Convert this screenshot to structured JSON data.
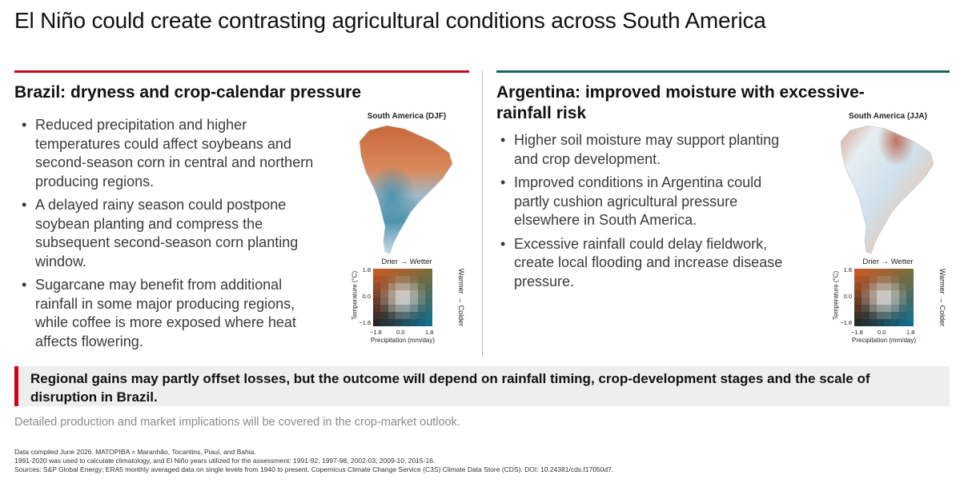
{
  "title": "El Niño could create contrasting agricultural conditions across South America",
  "left": {
    "heading": "Brazil: dryness and crop-calendar pressure",
    "bullets": [
      "Reduced precipitation and higher temperatures could affect soybeans and second-season corn in central and northern producing regions.",
      "A delayed rainy season could postpone soybean planting and compress the subsequent second-season corn planting window.",
      "Sugarcane may benefit from additional rainfall in some major producing regions, while coffee is more exposed where heat affects flowering."
    ],
    "map": {
      "title": "South America (DJF)",
      "legend_top": "Drier → Wetter",
      "legend_right": "Warmer → Colder",
      "y_label": "Temperature (°C)",
      "x_label": "Precipitation (mm/day)",
      "y_ticks": [
        "1.8",
        "0.0",
        "−1.8"
      ],
      "x_ticks": [
        "−1.8",
        "0.0",
        "1.8"
      ]
    }
  },
  "right": {
    "heading": "Argentina: improved moisture with excessive-rainfall risk",
    "bullets": [
      "Higher soil moisture may support planting and crop development.",
      "Improved conditions in Argentina could partly cushion agricultural pressure elsewhere in South America.",
      "Excessive rainfall could delay fieldwork, create local flooding and increase disease pressure."
    ],
    "map": {
      "title": "South America (JJA)",
      "legend_top": "Drier → Wetter",
      "legend_right": "Warmer → Colder",
      "y_label": "Temperature (°C)",
      "x_label": "Precipitation (mm/day)",
      "y_ticks": [
        "1.8",
        "0.0",
        "−1.8"
      ],
      "x_ticks": [
        "−1.8",
        "0.0",
        "1.8"
      ]
    }
  },
  "callout": "Regional gains may partly offset losses, but the outcome will depend on rainfall timing, crop-development stages and the scale of disruption in Brazil.",
  "note": "Detailed production and market implications will be covered in the crop-market outlook.",
  "footnotes": [
    "Data compiled June 2026. MATOPIBA = Maranhão, Tocantins, Piauí, and Bahia.",
    "1991-2020 was used to calculate climatology, and El Niño years utilized for the assessment: 1991-92, 1997-98, 2002-03, 2009-10, 2015-16.",
    "Sources: S&P Global Energy; ERA5 monthly averaged data on single levels from 1940 to present. Copernicus Climate Change Service (C3S) Climate Data Store (CDS). DOI: 10.24381/cds.f17050d7."
  ],
  "colors": {
    "brazil_accent": "#d0021b",
    "argentina_accent": "#14665a"
  }
}
